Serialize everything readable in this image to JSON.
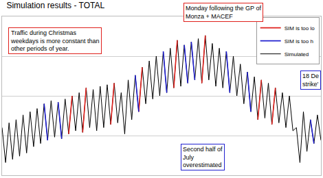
{
  "chart_data": {
    "type": "line",
    "title": "Simulation results - TOTAL",
    "x": [
      1,
      2,
      3,
      4,
      5,
      6,
      7,
      8,
      9,
      10,
      11,
      12,
      13,
      14,
      15,
      16,
      17,
      18,
      19,
      20,
      21,
      22,
      23,
      24,
      25,
      26,
      27,
      28,
      29,
      30,
      31,
      32,
      33,
      34,
      35,
      36,
      37,
      38,
      39,
      40,
      41,
      42,
      43,
      44,
      45,
      46,
      47,
      48,
      49,
      50,
      51,
      52,
      53,
      54,
      55,
      56,
      57,
      58,
      59,
      60,
      61,
      62,
      63,
      64,
      65,
      66,
      67,
      68,
      69,
      70,
      71,
      72,
      73,
      74,
      75,
      76,
      77,
      78,
      79,
      80,
      81,
      82,
      83,
      84,
      85,
      86,
      87,
      88,
      89,
      90,
      91,
      92
    ],
    "series": [
      {
        "name": "SIM is too lo",
        "color": "#e0201c",
        "x": [
          20,
          21,
          null,
          24,
          25,
          null,
          32,
          33,
          null,
          40,
          41,
          null,
          50,
          51,
          null,
          58,
          59,
          null,
          74,
          75,
          null,
          78,
          79
        ],
        "values": [
          26,
          50,
          null,
          27,
          55,
          null,
          32,
          58,
          null,
          40,
          68,
          null,
          55,
          85,
          null,
          58,
          88,
          null,
          35,
          60,
          null,
          32,
          55
        ]
      },
      {
        "name": "SIM is too h",
        "color": "#2020d0",
        "x": [
          13,
          14,
          null,
          17,
          18,
          null,
          39,
          40,
          null,
          47,
          48,
          null,
          53,
          54,
          null,
          55,
          56,
          null,
          65,
          66,
          null,
          71,
          72,
          null,
          89,
          90
        ],
        "values": [
          45,
          22,
          null,
          46,
          23,
          null,
          63,
          40,
          null,
          78,
          52,
          null,
          82,
          58,
          null,
          84,
          60,
          null,
          78,
          52,
          null,
          65,
          40,
          null,
          35,
          20
        ]
      },
      {
        "name": "Simulated",
        "color": "#000000",
        "values": [
          30,
          8,
          33,
          10,
          35,
          12,
          38,
          14,
          40,
          18,
          42,
          20,
          45,
          22,
          47,
          24,
          46,
          23,
          48,
          26,
          50,
          28,
          52,
          27,
          55,
          30,
          54,
          28,
          56,
          30,
          57,
          32,
          58,
          33,
          52,
          26,
          60,
          35,
          63,
          40,
          68,
          45,
          72,
          48,
          75,
          50,
          78,
          52,
          80,
          55,
          85,
          56,
          82,
          58,
          84,
          60,
          86,
          58,
          88,
          60,
          83,
          56,
          80,
          55,
          78,
          52,
          75,
          50,
          70,
          45,
          65,
          40,
          62,
          35,
          60,
          36,
          58,
          32,
          55,
          33,
          52,
          30,
          50,
          28,
          30,
          8,
          40,
          15,
          35,
          20,
          38,
          22
        ]
      }
    ],
    "annotations": [
      "Traffic during Christmas\nweekdays is more constant than\nother periods of year.",
      "Monday following the GP of\nMonza + MACEF",
      "Second half of\nJuly\noverestimated",
      "18 De\nstrike'"
    ],
    "xlim": [
      1,
      92
    ],
    "ylim": [
      0,
      100
    ],
    "yticks": [
      25,
      50,
      75
    ],
    "grid": true,
    "tick_labels": false,
    "legend": "upper right"
  }
}
